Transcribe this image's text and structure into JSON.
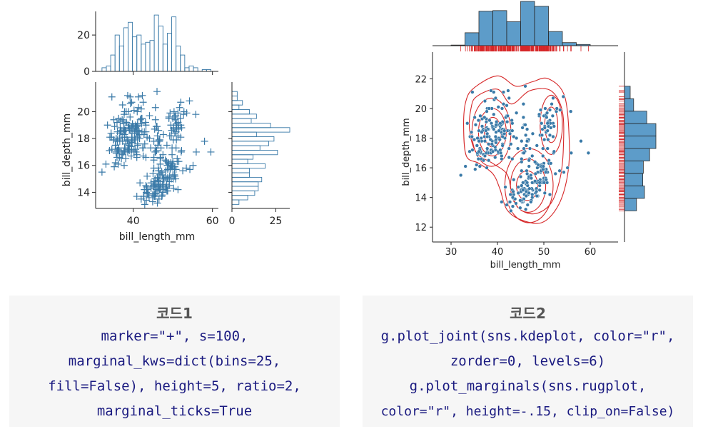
{
  "chart_data": [
    {
      "type": "scatter",
      "variant": "jointplot-marginal-histograms",
      "marker": "+",
      "color": "#3a7aa8",
      "xlabel": "bill_length_mm",
      "ylabel": "bill_depth_mm",
      "xlim": [
        30.5,
        61.5
      ],
      "ylim": [
        12.8,
        22.2
      ],
      "xticks": [
        40,
        60
      ],
      "yticks": [
        14,
        16,
        18,
        20
      ],
      "points": [
        [
          39.1,
          18.7
        ],
        [
          39.5,
          17.4
        ],
        [
          40.3,
          18.0
        ],
        [
          36.7,
          19.3
        ],
        [
          39.3,
          20.6
        ],
        [
          38.9,
          17.8
        ],
        [
          39.2,
          19.6
        ],
        [
          34.1,
          18.1
        ],
        [
          42.0,
          20.2
        ],
        [
          37.8,
          17.1
        ],
        [
          37.8,
          17.3
        ],
        [
          41.1,
          17.6
        ],
        [
          38.6,
          21.2
        ],
        [
          34.6,
          21.1
        ],
        [
          36.6,
          17.8
        ],
        [
          38.7,
          19.0
        ],
        [
          42.5,
          20.7
        ],
        [
          34.4,
          18.4
        ],
        [
          46.0,
          21.5
        ],
        [
          37.8,
          18.3
        ],
        [
          37.7,
          18.7
        ],
        [
          35.9,
          19.2
        ],
        [
          38.2,
          18.1
        ],
        [
          38.8,
          17.2
        ],
        [
          35.3,
          18.9
        ],
        [
          40.6,
          18.6
        ],
        [
          40.5,
          17.9
        ],
        [
          37.9,
          18.6
        ],
        [
          40.5,
          18.9
        ],
        [
          39.5,
          16.7
        ],
        [
          37.2,
          18.1
        ],
        [
          39.5,
          17.8
        ],
        [
          40.9,
          18.9
        ],
        [
          36.4,
          17.0
        ],
        [
          39.2,
          21.1
        ],
        [
          38.8,
          20.0
        ],
        [
          42.2,
          18.5
        ],
        [
          37.6,
          19.3
        ],
        [
          39.8,
          19.1
        ],
        [
          36.5,
          18.0
        ],
        [
          40.8,
          18.4
        ],
        [
          36.0,
          18.5
        ],
        [
          44.1,
          19.7
        ],
        [
          37.0,
          16.9
        ],
        [
          39.6,
          18.8
        ],
        [
          41.1,
          19.0
        ],
        [
          36.0,
          17.9
        ],
        [
          42.3,
          21.2
        ],
        [
          39.6,
          17.7
        ],
        [
          40.1,
          18.9
        ],
        [
          35.0,
          17.9
        ],
        [
          42.0,
          19.5
        ],
        [
          34.5,
          18.1
        ],
        [
          41.4,
          18.6
        ],
        [
          39.0,
          17.5
        ],
        [
          40.6,
          18.8
        ],
        [
          36.5,
          16.6
        ],
        [
          37.6,
          19.1
        ],
        [
          35.7,
          16.9
        ],
        [
          41.3,
          21.1
        ],
        [
          37.6,
          17.0
        ],
        [
          41.1,
          18.2
        ],
        [
          36.4,
          17.1
        ],
        [
          41.6,
          18.0
        ],
        [
          35.5,
          16.2
        ],
        [
          41.1,
          19.1
        ],
        [
          35.9,
          16.6
        ],
        [
          41.8,
          19.4
        ],
        [
          33.5,
          19.0
        ],
        [
          39.7,
          18.4
        ],
        [
          39.6,
          17.2
        ],
        [
          45.8,
          18.9
        ],
        [
          35.5,
          17.5
        ],
        [
          42.8,
          18.5
        ],
        [
          40.9,
          16.8
        ],
        [
          37.2,
          19.4
        ],
        [
          36.2,
          16.1
        ],
        [
          42.1,
          19.1
        ],
        [
          34.6,
          17.2
        ],
        [
          42.9,
          17.6
        ],
        [
          36.7,
          18.8
        ],
        [
          35.1,
          19.4
        ],
        [
          37.3,
          17.8
        ],
        [
          41.3,
          20.3
        ],
        [
          36.3,
          19.5
        ],
        [
          36.9,
          18.6
        ],
        [
          38.3,
          19.2
        ],
        [
          38.9,
          18.8
        ],
        [
          35.7,
          18.0
        ],
        [
          41.1,
          18.1
        ],
        [
          34.0,
          17.1
        ],
        [
          39.6,
          18.1
        ],
        [
          36.2,
          17.3
        ],
        [
          40.8,
          18.9
        ],
        [
          38.1,
          18.6
        ],
        [
          40.3,
          18.5
        ],
        [
          33.1,
          16.1
        ],
        [
          43.2,
          18.5
        ],
        [
          35.0,
          17.9
        ],
        [
          41.0,
          20.0
        ],
        [
          37.7,
          16.0
        ],
        [
          37.8,
          20.0
        ],
        [
          37.9,
          18.6
        ],
        [
          39.7,
          18.9
        ],
        [
          38.6,
          17.2
        ],
        [
          38.2,
          20.0
        ],
        [
          38.1,
          17.0
        ],
        [
          43.2,
          19.0
        ],
        [
          38.1,
          16.5
        ],
        [
          45.6,
          20.3
        ],
        [
          39.7,
          17.7
        ],
        [
          42.2,
          19.5
        ],
        [
          39.6,
          20.7
        ],
        [
          42.7,
          18.3
        ],
        [
          38.6,
          17.0
        ],
        [
          37.3,
          20.5
        ],
        [
          35.7,
          17.0
        ],
        [
          41.1,
          18.6
        ],
        [
          36.2,
          17.2
        ],
        [
          37.7,
          19.8
        ],
        [
          40.2,
          17.0
        ],
        [
          41.4,
          18.5
        ],
        [
          35.2,
          15.9
        ],
        [
          40.6,
          19.0
        ],
        [
          38.8,
          17.6
        ],
        [
          41.5,
          18.3
        ],
        [
          39.0,
          17.1
        ],
        [
          44.1,
          18.0
        ],
        [
          38.5,
          17.9
        ],
        [
          43.1,
          19.2
        ],
        [
          36.8,
          18.5
        ],
        [
          37.5,
          18.5
        ],
        [
          38.1,
          17.6
        ],
        [
          41.1,
          17.5
        ],
        [
          35.6,
          17.5
        ],
        [
          40.2,
          20.1
        ],
        [
          37.0,
          16.5
        ],
        [
          39.7,
          17.9
        ],
        [
          40.2,
          17.1
        ],
        [
          40.6,
          17.2
        ],
        [
          32.1,
          15.5
        ],
        [
          40.7,
          17.0
        ],
        [
          37.3,
          16.8
        ],
        [
          39.0,
          18.7
        ],
        [
          39.2,
          18.6
        ],
        [
          36.6,
          18.4
        ],
        [
          36.0,
          17.8
        ],
        [
          37.8,
          18.1
        ],
        [
          36.0,
          17.1
        ],
        [
          41.5,
          18.5
        ],
        [
          46.1,
          13.2
        ],
        [
          50.0,
          16.3
        ],
        [
          48.7,
          14.1
        ],
        [
          50.0,
          15.2
        ],
        [
          47.6,
          14.5
        ],
        [
          46.5,
          13.5
        ],
        [
          45.4,
          14.6
        ],
        [
          46.7,
          15.3
        ],
        [
          43.3,
          13.4
        ],
        [
          46.8,
          15.4
        ],
        [
          40.9,
          13.7
        ],
        [
          49.0,
          16.1
        ],
        [
          45.5,
          13.7
        ],
        [
          48.4,
          14.6
        ],
        [
          45.8,
          14.6
        ],
        [
          49.3,
          15.7
        ],
        [
          42.0,
          13.5
        ],
        [
          49.2,
          15.2
        ],
        [
          46.2,
          14.5
        ],
        [
          48.7,
          15.1
        ],
        [
          50.2,
          14.3
        ],
        [
          45.1,
          14.5
        ],
        [
          46.5,
          14.5
        ],
        [
          46.3,
          15.8
        ],
        [
          42.9,
          13.1
        ],
        [
          46.1,
          15.1
        ],
        [
          44.5,
          14.3
        ],
        [
          47.8,
          15.0
        ],
        [
          48.2,
          14.3
        ],
        [
          50.0,
          15.3
        ],
        [
          47.3,
          15.3
        ],
        [
          42.8,
          14.2
        ],
        [
          45.1,
          14.5
        ],
        [
          59.6,
          17.0
        ],
        [
          49.1,
          14.8
        ],
        [
          48.4,
          16.3
        ],
        [
          42.6,
          13.7
        ],
        [
          44.4,
          17.3
        ],
        [
          44.0,
          13.6
        ],
        [
          48.7,
          15.7
        ],
        [
          42.7,
          13.7
        ],
        [
          49.6,
          16.0
        ],
        [
          45.3,
          13.7
        ],
        [
          49.6,
          15.0
        ],
        [
          50.5,
          15.9
        ],
        [
          43.6,
          13.9
        ],
        [
          45.5,
          13.9
        ],
        [
          50.5,
          15.9
        ],
        [
          44.9,
          13.3
        ],
        [
          45.2,
          15.8
        ],
        [
          46.6,
          14.2
        ],
        [
          48.5,
          14.1
        ],
        [
          45.1,
          14.4
        ],
        [
          50.1,
          15.0
        ],
        [
          46.5,
          14.4
        ],
        [
          45.0,
          15.4
        ],
        [
          43.8,
          13.9
        ],
        [
          45.5,
          15.0
        ],
        [
          43.2,
          14.5
        ],
        [
          50.4,
          15.3
        ],
        [
          45.3,
          13.8
        ],
        [
          46.2,
          14.9
        ],
        [
          45.7,
          13.9
        ],
        [
          54.3,
          15.7
        ],
        [
          45.8,
          14.2
        ],
        [
          49.8,
          16.8
        ],
        [
          46.2,
          14.4
        ],
        [
          49.5,
          16.2
        ],
        [
          43.5,
          14.2
        ],
        [
          50.7,
          15.0
        ],
        [
          47.7,
          15.0
        ],
        [
          46.4,
          15.6
        ],
        [
          48.2,
          15.6
        ],
        [
          46.5,
          14.8
        ],
        [
          46.4,
          15.0
        ],
        [
          48.6,
          16.0
        ],
        [
          47.5,
          14.2
        ],
        [
          51.1,
          16.3
        ],
        [
          45.2,
          13.8
        ],
        [
          45.2,
          16.4
        ],
        [
          49.1,
          14.5
        ],
        [
          52.5,
          15.6
        ],
        [
          47.4,
          14.6
        ],
        [
          50.0,
          15.9
        ],
        [
          44.9,
          13.8
        ],
        [
          50.8,
          17.3
        ],
        [
          43.4,
          14.4
        ],
        [
          51.3,
          14.2
        ],
        [
          47.5,
          14.0
        ],
        [
          52.1,
          17.0
        ],
        [
          47.5,
          15.0
        ],
        [
          52.2,
          17.1
        ],
        [
          45.5,
          14.5
        ],
        [
          49.5,
          16.1
        ],
        [
          44.5,
          14.7
        ],
        [
          50.8,
          15.7
        ],
        [
          49.4,
          15.8
        ],
        [
          46.9,
          14.6
        ],
        [
          48.4,
          14.4
        ],
        [
          51.1,
          16.5
        ],
        [
          48.5,
          15.0
        ],
        [
          55.9,
          17.0
        ],
        [
          47.2,
          15.5
        ],
        [
          49.1,
          15.0
        ],
        [
          47.3,
          13.8
        ],
        [
          46.8,
          16.1
        ],
        [
          41.7,
          14.7
        ],
        [
          53.4,
          15.8
        ],
        [
          43.3,
          14.0
        ],
        [
          48.1,
          15.1
        ],
        [
          50.5,
          15.2
        ],
        [
          49.8,
          15.9
        ],
        [
          43.5,
          15.2
        ],
        [
          51.5,
          16.3
        ],
        [
          46.2,
          14.1
        ],
        [
          55.1,
          16.0
        ],
        [
          48.8,
          16.2
        ],
        [
          47.2,
          13.7
        ],
        [
          46.8,
          14.3
        ],
        [
          50.4,
          15.7
        ],
        [
          45.2,
          14.8
        ],
        [
          49.9,
          16.1
        ],
        [
          46.5,
          17.9
        ],
        [
          50.0,
          19.5
        ],
        [
          51.3,
          19.2
        ],
        [
          45.4,
          18.7
        ],
        [
          52.7,
          19.8
        ],
        [
          45.2,
          17.8
        ],
        [
          46.1,
          18.2
        ],
        [
          51.3,
          18.2
        ],
        [
          46.0,
          18.9
        ],
        [
          51.3,
          19.9
        ],
        [
          46.6,
          17.8
        ],
        [
          51.7,
          20.3
        ],
        [
          47.0,
          17.3
        ],
        [
          52.0,
          18.1
        ],
        [
          45.9,
          17.1
        ],
        [
          50.5,
          19.6
        ],
        [
          50.3,
          20.0
        ],
        [
          58.0,
          17.8
        ],
        [
          46.4,
          18.6
        ],
        [
          49.2,
          18.2
        ],
        [
          42.4,
          17.3
        ],
        [
          48.5,
          17.5
        ],
        [
          43.2,
          16.6
        ],
        [
          50.6,
          19.4
        ],
        [
          46.7,
          17.9
        ],
        [
          52.0,
          19.0
        ],
        [
          50.5,
          18.4
        ],
        [
          49.5,
          19.0
        ],
        [
          46.4,
          17.8
        ],
        [
          52.8,
          20.0
        ],
        [
          40.9,
          16.6
        ],
        [
          54.2,
          20.8
        ],
        [
          42.5,
          16.7
        ],
        [
          51.0,
          18.8
        ],
        [
          49.7,
          18.6
        ],
        [
          47.5,
          16.8
        ],
        [
          47.6,
          18.3
        ],
        [
          52.0,
          20.7
        ],
        [
          46.9,
          16.6
        ],
        [
          53.5,
          19.9
        ],
        [
          49.0,
          19.5
        ],
        [
          46.2,
          17.5
        ],
        [
          50.9,
          19.1
        ],
        [
          45.5,
          17.0
        ],
        [
          50.9,
          17.9
        ],
        [
          50.8,
          18.5
        ],
        [
          50.1,
          17.9
        ],
        [
          49.0,
          19.6
        ],
        [
          51.5,
          18.7
        ],
        [
          49.8,
          17.3
        ],
        [
          48.1,
          16.4
        ],
        [
          51.4,
          19.0
        ],
        [
          45.7,
          17.3
        ],
        [
          50.7,
          19.7
        ],
        [
          42.5,
          17.3
        ],
        [
          52.2,
          18.8
        ],
        [
          45.2,
          16.6
        ],
        [
          49.3,
          19.9
        ],
        [
          50.2,
          18.8
        ],
        [
          45.6,
          19.4
        ],
        [
          51.9,
          19.5
        ],
        [
          46.8,
          16.5
        ],
        [
          45.7,
          17.0
        ],
        [
          55.8,
          19.8
        ],
        [
          43.5,
          18.1
        ],
        [
          49.6,
          18.2
        ],
        [
          50.8,
          19.0
        ],
        [
          50.2,
          18.7
        ]
      ],
      "marginal_x": {
        "type": "histogram",
        "bins": 25,
        "fill": false,
        "yticks": [
          0,
          20
        ],
        "ylim": [
          0,
          33
        ]
      },
      "marginal_y": {
        "type": "histogram",
        "bins": 25,
        "fill": false,
        "xticks": [
          0,
          25
        ],
        "xlim": [
          0,
          33
        ]
      }
    },
    {
      "type": "scatter",
      "variant": "jointplot-kde-rug",
      "color": "#3a7aa8",
      "kde_color": "#d62728",
      "xlabel": "bill_length_mm",
      "ylabel": "bill_depth_mm",
      "xlim": [
        26,
        66
      ],
      "ylim": [
        11,
        23.8
      ],
      "xticks": [
        30,
        40,
        50,
        60
      ],
      "yticks": [
        12,
        14,
        16,
        18,
        20,
        22
      ],
      "kde_levels": 6
    }
  ],
  "code_boxes": [
    {
      "title": "코드1",
      "lines": [
        "marker=\"+\", s=100,",
        "marginal_kws=dict(bins=25,",
        "fill=False), height=5, ratio=2,",
        "marginal_ticks=True"
      ]
    },
    {
      "title": "코드2",
      "lines": [
        "g.plot_joint(sns.kdeplot, color=\"r\",",
        "zorder=0, levels=6)",
        "g.plot_marginals(sns.rugplot,",
        "color=\"r\", height=-.15, clip_on=False)"
      ]
    }
  ]
}
